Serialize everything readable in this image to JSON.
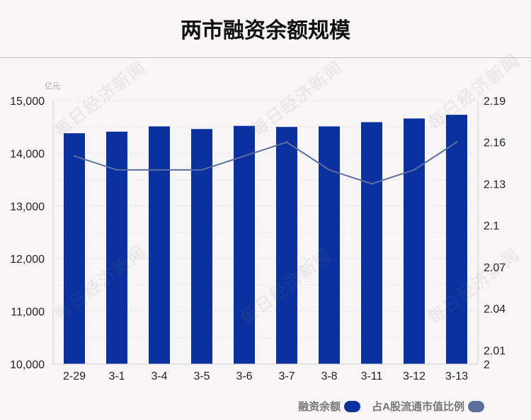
{
  "chart_data": {
    "type": "bar",
    "title": "两市融资余额规模",
    "unit_left": "亿元",
    "categories": [
      "2-29",
      "3-1",
      "3-4",
      "3-5",
      "3-6",
      "3-7",
      "3-8",
      "3-11",
      "3-12",
      "3-13"
    ],
    "series": [
      {
        "name": "融资余额",
        "type": "bar",
        "axis": "left",
        "color": "#0b31a0",
        "values": [
          14380,
          14410,
          14510,
          14460,
          14520,
          14500,
          14510,
          14590,
          14660,
          14730
        ]
      },
      {
        "name": "占A股流通市值比例",
        "type": "line",
        "axis": "right",
        "color": "#5b6ea0",
        "values": [
          2.15,
          2.14,
          2.14,
          2.14,
          2.15,
          2.16,
          2.14,
          2.13,
          2.14,
          2.16
        ]
      }
    ],
    "y_left": {
      "ylim": [
        10000,
        15000
      ],
      "ticks": [
        10000,
        11000,
        12000,
        13000,
        14000,
        15000
      ],
      "tick_labels": [
        "10,000",
        "11,000",
        "12,000",
        "13,000",
        "14,000",
        "15,000"
      ]
    },
    "y_right": {
      "ylim": [
        2.0,
        2.19
      ],
      "ticks": [
        2.0,
        2.01,
        2.04,
        2.07,
        2.1,
        2.13,
        2.16,
        2.19
      ],
      "tick_labels": [
        "2",
        "2.01",
        "2.04",
        "2.07",
        "2.1",
        "2.13",
        "2.16",
        "2.19"
      ]
    },
    "grid": "dashed horizontal",
    "legend_position": "bottom-right"
  },
  "watermark_text": "每日经济新闻"
}
